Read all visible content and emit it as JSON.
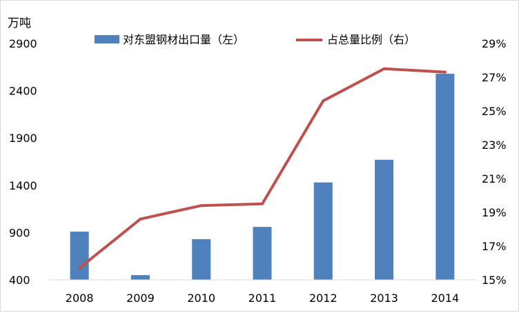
{
  "chart_data": {
    "type": "bar",
    "categories": [
      "2008",
      "2009",
      "2010",
      "2011",
      "2012",
      "2013",
      "2014"
    ],
    "series": [
      {
        "name": "对东盟钢材出口量（左）",
        "type": "bar",
        "axis": "left",
        "color": "#4f81bd",
        "values": [
          910,
          450,
          830,
          960,
          1430,
          1670,
          2580
        ]
      },
      {
        "name": "占总量比例（右）",
        "type": "line",
        "axis": "right",
        "color": "#c0504d",
        "values": [
          15.7,
          18.6,
          19.4,
          19.5,
          25.6,
          27.5,
          27.3
        ]
      }
    ],
    "left_unit": "万吨",
    "left_ylim": [
      400,
      2900
    ],
    "left_ticks": [
      "400",
      "900",
      "1400",
      "1900",
      "2400",
      "2900"
    ],
    "right_ylim": [
      15,
      29
    ],
    "right_ticks": [
      "15%",
      "17%",
      "19%",
      "21%",
      "23%",
      "25%",
      "27%",
      "29%"
    ],
    "legend_position": "top",
    "grid": false
  }
}
